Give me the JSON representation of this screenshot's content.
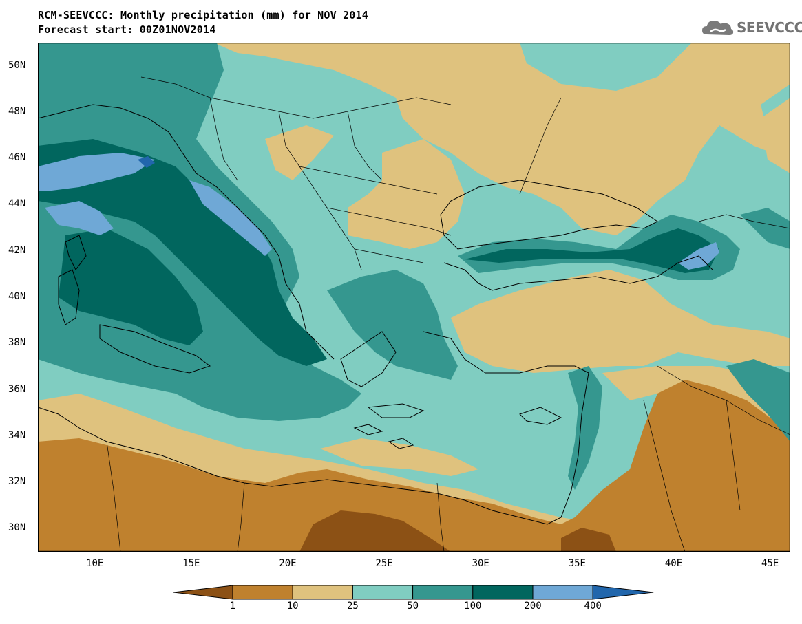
{
  "header": {
    "title_line1": "RCM-SEEVCCC: Monthly precipitation (mm) for NOV 2014",
    "title_line2": "Forecast start: 00Z01NOV2014"
  },
  "logo": {
    "text": "SEEVCCC",
    "icon": "cloud-icon"
  },
  "map": {
    "lon_range": [
      7,
      46
    ],
    "lat_range": [
      29,
      51
    ],
    "lat_ticks": [
      "50N",
      "48N",
      "46N",
      "44N",
      "42N",
      "40N",
      "38N",
      "36N",
      "34N",
      "32N",
      "30N"
    ],
    "lon_ticks": [
      "10E",
      "15E",
      "20E",
      "25E",
      "30E",
      "35E",
      "40E",
      "45E"
    ]
  },
  "colorbar": {
    "labels": [
      "1",
      "10",
      "25",
      "50",
      "100",
      "200",
      "400"
    ],
    "colors": [
      "#8c5115",
      "#bf812e",
      "#dfc27e",
      "#80cdc1",
      "#35978f",
      "#01665e",
      "#6fa8d6",
      "#2166ac"
    ]
  }
}
